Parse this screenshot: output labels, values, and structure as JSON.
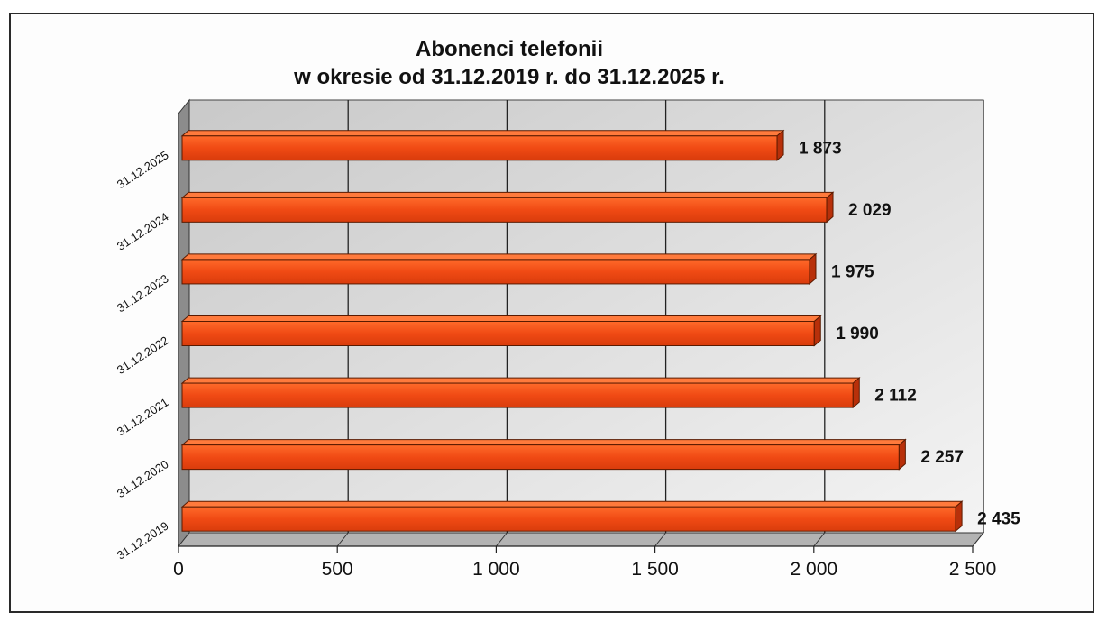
{
  "chart_data": {
    "type": "bar",
    "orientation": "horizontal",
    "title_lines": [
      "Abonenci telefonii",
      "w okresie od 31.12.2019 r. do 31.12.2025 r."
    ],
    "categories": [
      "31.12.2025",
      "31.12.2024",
      "31.12.2023",
      "31.12.2022",
      "31.12.2021",
      "31.12.2020",
      "31.12.2019"
    ],
    "values": [
      1873,
      2029,
      1975,
      1990,
      2112,
      2257,
      2435
    ],
    "data_labels": [
      "1 873",
      "2 029",
      "1 975",
      "1 990",
      "2 112",
      "2 257",
      "2 435"
    ],
    "xlim": [
      0,
      2500
    ],
    "x_ticks": [
      0,
      500,
      1000,
      1500,
      2000,
      2500
    ],
    "x_tick_labels": [
      "0",
      "500",
      "1 000",
      "1 500",
      "2 000",
      "2 500"
    ],
    "grid": "vertical",
    "legend": "none",
    "bar_color": "#f04a14",
    "bar_top_color": "#ff7a3c",
    "bar_side_color": "#b8300a"
  }
}
